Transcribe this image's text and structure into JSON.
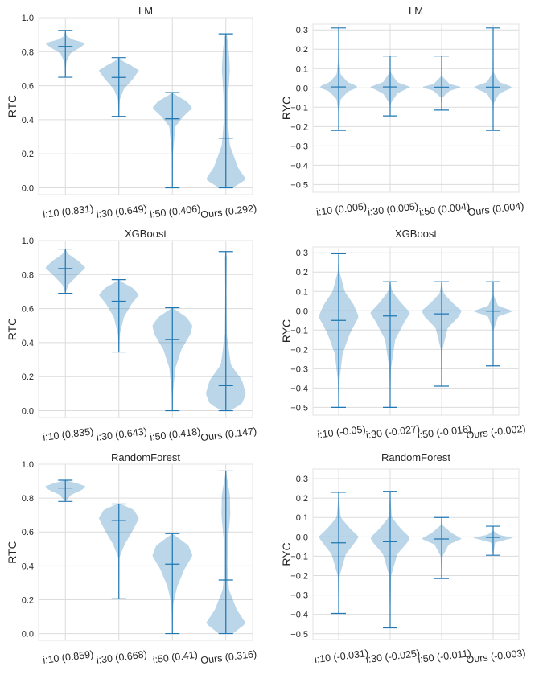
{
  "chart_data": [
    {
      "type": "violin",
      "title": "LM",
      "ylabel": "RTC",
      "ylim": [
        -0.04,
        1.0
      ],
      "yticks": [
        0.0,
        0.2,
        0.4,
        0.6,
        0.8,
        1.0
      ],
      "ytick_labels": [
        "0.0",
        "0.2",
        "0.4",
        "0.6",
        "0.8",
        "1.0"
      ],
      "grid": true,
      "color": "#1f77b4",
      "violins": [
        {
          "label": "i:10 (0.831)",
          "min": 0.65,
          "max": 0.925,
          "median": 0.831,
          "profile": [
            [
              0.65,
              0.0
            ],
            [
              0.74,
              0.05
            ],
            [
              0.79,
              0.25
            ],
            [
              0.83,
              0.8
            ],
            [
              0.85,
              1.0
            ],
            [
              0.87,
              0.4
            ],
            [
              0.89,
              0.08
            ],
            [
              0.925,
              0.0
            ]
          ]
        },
        {
          "label": "i:30 (0.649)",
          "min": 0.42,
          "max": 0.765,
          "median": 0.649,
          "profile": [
            [
              0.42,
              0.0
            ],
            [
              0.52,
              0.05
            ],
            [
              0.58,
              0.25
            ],
            [
              0.64,
              0.7
            ],
            [
              0.69,
              1.0
            ],
            [
              0.72,
              0.6
            ],
            [
              0.745,
              0.2
            ],
            [
              0.765,
              0.0
            ]
          ]
        },
        {
          "label": "i:50 (0.406)",
          "min": 0.0,
          "max": 0.56,
          "median": 0.406,
          "profile": [
            [
              0.0,
              0.0
            ],
            [
              0.2,
              0.03
            ],
            [
              0.36,
              0.15
            ],
            [
              0.42,
              0.55
            ],
            [
              0.47,
              1.0
            ],
            [
              0.51,
              0.7
            ],
            [
              0.54,
              0.25
            ],
            [
              0.56,
              0.0
            ]
          ]
        },
        {
          "label": "Ours (0.292)",
          "min": 0.0,
          "max": 0.905,
          "median": 0.292,
          "profile": [
            [
              0.0,
              0.35
            ],
            [
              0.05,
              1.0
            ],
            [
              0.12,
              0.6
            ],
            [
              0.25,
              0.2
            ],
            [
              0.4,
              0.1
            ],
            [
              0.55,
              0.12
            ],
            [
              0.7,
              0.2
            ],
            [
              0.8,
              0.15
            ],
            [
              0.9,
              0.05
            ],
            [
              0.905,
              0.0
            ]
          ]
        }
      ]
    },
    {
      "type": "violin",
      "title": "LM",
      "ylabel": "RYC",
      "ylim": [
        -0.54,
        0.33
      ],
      "yticks": [
        -0.5,
        -0.4,
        -0.3,
        -0.2,
        -0.1,
        0.0,
        0.1,
        0.2,
        0.3
      ],
      "ytick_labels": [
        "−0.5",
        "−0.4",
        "−0.3",
        "−0.2",
        "−0.1",
        "0.0",
        "0.1",
        "0.2",
        "0.3"
      ],
      "grid": true,
      "color": "#1f77b4",
      "violins": [
        {
          "label": "i:10 (0.005)",
          "min": -0.22,
          "max": 0.31,
          "median": 0.005,
          "profile": [
            [
              -0.22,
              0.0
            ],
            [
              -0.12,
              0.02
            ],
            [
              -0.06,
              0.1
            ],
            [
              -0.02,
              0.45
            ],
            [
              0.005,
              1.0
            ],
            [
              0.03,
              0.45
            ],
            [
              0.07,
              0.1
            ],
            [
              0.15,
              0.02
            ],
            [
              0.31,
              0.0
            ]
          ]
        },
        {
          "label": "i:30 (0.005)",
          "min": -0.145,
          "max": 0.165,
          "median": 0.005,
          "profile": [
            [
              -0.145,
              0.0
            ],
            [
              -0.08,
              0.03
            ],
            [
              -0.03,
              0.35
            ],
            [
              0.005,
              1.0
            ],
            [
              0.03,
              0.35
            ],
            [
              0.08,
              0.03
            ],
            [
              0.165,
              0.0
            ]
          ]
        },
        {
          "label": "i:50 (0.004)",
          "min": -0.115,
          "max": 0.165,
          "median": 0.004,
          "profile": [
            [
              -0.115,
              0.0
            ],
            [
              -0.05,
              0.04
            ],
            [
              -0.015,
              0.4
            ],
            [
              0.004,
              1.0
            ],
            [
              0.02,
              0.4
            ],
            [
              0.06,
              0.03
            ],
            [
              0.165,
              0.0
            ]
          ]
        },
        {
          "label": "Ours (0.004)",
          "min": -0.22,
          "max": 0.31,
          "median": 0.004,
          "profile": [
            [
              -0.22,
              0.0
            ],
            [
              -0.08,
              0.03
            ],
            [
              -0.03,
              0.3
            ],
            [
              0.004,
              1.0
            ],
            [
              0.03,
              0.3
            ],
            [
              0.08,
              0.03
            ],
            [
              0.31,
              0.0
            ]
          ]
        }
      ]
    },
    {
      "type": "violin",
      "title": "XGBoost",
      "ylabel": "RTC",
      "ylim": [
        -0.04,
        1.0
      ],
      "yticks": [
        0.0,
        0.2,
        0.4,
        0.6,
        0.8,
        1.0
      ],
      "ytick_labels": [
        "0.0",
        "0.2",
        "0.4",
        "0.6",
        "0.8",
        "1.0"
      ],
      "grid": true,
      "color": "#1f77b4",
      "violins": [
        {
          "label": "i:10 (0.835)",
          "min": 0.69,
          "max": 0.95,
          "median": 0.835,
          "profile": [
            [
              0.69,
              0.0
            ],
            [
              0.74,
              0.15
            ],
            [
              0.79,
              0.55
            ],
            [
              0.84,
              1.0
            ],
            [
              0.88,
              0.65
            ],
            [
              0.92,
              0.15
            ],
            [
              0.95,
              0.0
            ]
          ]
        },
        {
          "label": "i:30 (0.643)",
          "min": 0.345,
          "max": 0.77,
          "median": 0.643,
          "profile": [
            [
              0.345,
              0.0
            ],
            [
              0.45,
              0.05
            ],
            [
              0.55,
              0.25
            ],
            [
              0.63,
              0.65
            ],
            [
              0.68,
              1.0
            ],
            [
              0.72,
              0.7
            ],
            [
              0.75,
              0.25
            ],
            [
              0.77,
              0.0
            ]
          ]
        },
        {
          "label": "i:50 (0.418)",
          "min": 0.0,
          "max": 0.605,
          "median": 0.418,
          "profile": [
            [
              0.0,
              0.0
            ],
            [
              0.12,
              0.04
            ],
            [
              0.25,
              0.15
            ],
            [
              0.36,
              0.45
            ],
            [
              0.45,
              0.9
            ],
            [
              0.5,
              1.0
            ],
            [
              0.55,
              0.7
            ],
            [
              0.59,
              0.2
            ],
            [
              0.605,
              0.0
            ]
          ]
        },
        {
          "label": "Ours (0.147)",
          "min": 0.0,
          "max": 0.935,
          "median": 0.147,
          "profile": [
            [
              0.0,
              0.2
            ],
            [
              0.04,
              0.8
            ],
            [
              0.1,
              1.0
            ],
            [
              0.18,
              0.8
            ],
            [
              0.27,
              0.25
            ],
            [
              0.45,
              0.05
            ],
            [
              0.7,
              0.03
            ],
            [
              0.9,
              0.05
            ],
            [
              0.935,
              0.0
            ]
          ]
        }
      ]
    },
    {
      "type": "violin",
      "title": "XGBoost",
      "ylabel": "RYC",
      "ylim": [
        -0.54,
        0.33
      ],
      "yticks": [
        -0.5,
        -0.4,
        -0.3,
        -0.2,
        -0.1,
        0.0,
        0.1,
        0.2,
        0.3
      ],
      "ytick_labels": [
        "−0.5",
        "−0.4",
        "−0.3",
        "−0.2",
        "−0.1",
        "0.0",
        "0.1",
        "0.2",
        "0.3"
      ],
      "grid": true,
      "color": "#1f77b4",
      "violins": [
        {
          "label": "i:10 (-0.05)",
          "min": -0.5,
          "max": 0.295,
          "median": -0.05,
          "profile": [
            [
              -0.5,
              0.0
            ],
            [
              -0.35,
              0.05
            ],
            [
              -0.22,
              0.2
            ],
            [
              -0.12,
              0.55
            ],
            [
              -0.03,
              1.0
            ],
            [
              0.03,
              0.75
            ],
            [
              0.1,
              0.3
            ],
            [
              0.2,
              0.05
            ],
            [
              0.295,
              0.0
            ]
          ]
        },
        {
          "label": "i:30 (-0.027)",
          "min": -0.5,
          "max": 0.15,
          "median": -0.027,
          "profile": [
            [
              -0.5,
              0.0
            ],
            [
              -0.3,
              0.04
            ],
            [
              -0.15,
              0.25
            ],
            [
              -0.06,
              0.7
            ],
            [
              -0.01,
              1.0
            ],
            [
              0.04,
              0.55
            ],
            [
              0.1,
              0.1
            ],
            [
              0.15,
              0.0
            ]
          ]
        },
        {
          "label": "i:50 (-0.016)",
          "min": -0.39,
          "max": 0.15,
          "median": -0.016,
          "profile": [
            [
              -0.39,
              0.0
            ],
            [
              -0.2,
              0.04
            ],
            [
              -0.09,
              0.3
            ],
            [
              -0.03,
              0.85
            ],
            [
              0.0,
              1.0
            ],
            [
              0.04,
              0.55
            ],
            [
              0.09,
              0.1
            ],
            [
              0.15,
              0.0
            ]
          ]
        },
        {
          "label": "Ours (-0.002)",
          "min": -0.285,
          "max": 0.15,
          "median": -0.002,
          "profile": [
            [
              -0.285,
              0.0
            ],
            [
              -0.1,
              0.02
            ],
            [
              -0.03,
              0.25
            ],
            [
              -0.002,
              1.0
            ],
            [
              0.025,
              0.25
            ],
            [
              0.08,
              0.02
            ],
            [
              0.15,
              0.0
            ]
          ]
        }
      ]
    },
    {
      "type": "violin",
      "title": "RandomForest",
      "ylabel": "RTC",
      "ylim": [
        -0.04,
        1.0
      ],
      "yticks": [
        0.0,
        0.2,
        0.4,
        0.6,
        0.8,
        1.0
      ],
      "ytick_labels": [
        "0.0",
        "0.2",
        "0.4",
        "0.6",
        "0.8",
        "1.0"
      ],
      "grid": true,
      "color": "#1f77b4",
      "violins": [
        {
          "label": "i:10 (0.859)",
          "min": 0.78,
          "max": 0.905,
          "median": 0.859,
          "profile": [
            [
              0.78,
              0.0
            ],
            [
              0.82,
              0.3
            ],
            [
              0.85,
              0.85
            ],
            [
              0.87,
              1.0
            ],
            [
              0.89,
              0.5
            ],
            [
              0.905,
              0.0
            ]
          ]
        },
        {
          "label": "i:30 (0.668)",
          "min": 0.205,
          "max": 0.765,
          "median": 0.668,
          "profile": [
            [
              0.205,
              0.0
            ],
            [
              0.45,
              0.03
            ],
            [
              0.53,
              0.3
            ],
            [
              0.6,
              0.65
            ],
            [
              0.68,
              1.0
            ],
            [
              0.73,
              0.75
            ],
            [
              0.76,
              0.2
            ],
            [
              0.765,
              0.0
            ]
          ]
        },
        {
          "label": "i:50 (0.41)",
          "min": 0.0,
          "max": 0.59,
          "median": 0.41,
          "profile": [
            [
              0.0,
              0.0
            ],
            [
              0.18,
              0.05
            ],
            [
              0.28,
              0.25
            ],
            [
              0.38,
              0.6
            ],
            [
              0.46,
              1.0
            ],
            [
              0.52,
              0.8
            ],
            [
              0.56,
              0.35
            ],
            [
              0.59,
              0.0
            ]
          ]
        },
        {
          "label": "Ours (0.316)",
          "min": 0.0,
          "max": 0.96,
          "median": 0.316,
          "profile": [
            [
              0.0,
              0.35
            ],
            [
              0.06,
              1.0
            ],
            [
              0.14,
              0.55
            ],
            [
              0.26,
              0.15
            ],
            [
              0.4,
              0.08
            ],
            [
              0.55,
              0.1
            ],
            [
              0.7,
              0.22
            ],
            [
              0.82,
              0.2
            ],
            [
              0.92,
              0.06
            ],
            [
              0.96,
              0.0
            ]
          ]
        }
      ]
    },
    {
      "type": "violin",
      "title": "RandomForest",
      "ylabel": "RYC",
      "ylim": [
        -0.53,
        0.35
      ],
      "yticks": [
        -0.5,
        -0.4,
        -0.3,
        -0.2,
        -0.1,
        0.0,
        0.1,
        0.2,
        0.3
      ],
      "ytick_labels": [
        "−0.5",
        "−0.4",
        "−0.3",
        "−0.2",
        "−0.1",
        "0.0",
        "0.1",
        "0.2",
        "0.3"
      ],
      "grid": true,
      "color": "#1f77b4",
      "violins": [
        {
          "label": "i:10 (-0.031)",
          "min": -0.395,
          "max": 0.23,
          "median": -0.031,
          "profile": [
            [
              -0.395,
              0.0
            ],
            [
              -0.2,
              0.05
            ],
            [
              -0.09,
              0.35
            ],
            [
              -0.03,
              0.8
            ],
            [
              0.0,
              1.0
            ],
            [
              0.04,
              0.6
            ],
            [
              0.1,
              0.1
            ],
            [
              0.23,
              0.0
            ]
          ]
        },
        {
          "label": "i:30 (-0.025)",
          "min": -0.47,
          "max": 0.235,
          "median": -0.025,
          "profile": [
            [
              -0.47,
              0.0
            ],
            [
              -0.2,
              0.05
            ],
            [
              -0.09,
              0.35
            ],
            [
              -0.03,
              0.85
            ],
            [
              -0.005,
              1.0
            ],
            [
              0.04,
              0.55
            ],
            [
              0.1,
              0.08
            ],
            [
              0.235,
              0.0
            ]
          ]
        },
        {
          "label": "i:50 (-0.011)",
          "min": -0.215,
          "max": 0.1,
          "median": -0.011,
          "profile": [
            [
              -0.215,
              0.0
            ],
            [
              -0.1,
              0.05
            ],
            [
              -0.04,
              0.35
            ],
            [
              -0.01,
              1.0
            ],
            [
              0.02,
              0.5
            ],
            [
              0.06,
              0.05
            ],
            [
              0.1,
              0.0
            ]
          ]
        },
        {
          "label": "Ours (-0.003)",
          "min": -0.095,
          "max": 0.055,
          "median": -0.003,
          "profile": [
            [
              -0.095,
              0.0
            ],
            [
              -0.03,
              0.1
            ],
            [
              -0.005,
              1.0
            ],
            [
              0.01,
              0.3
            ],
            [
              0.03,
              0.03
            ],
            [
              0.055,
              0.0
            ]
          ]
        }
      ]
    }
  ]
}
